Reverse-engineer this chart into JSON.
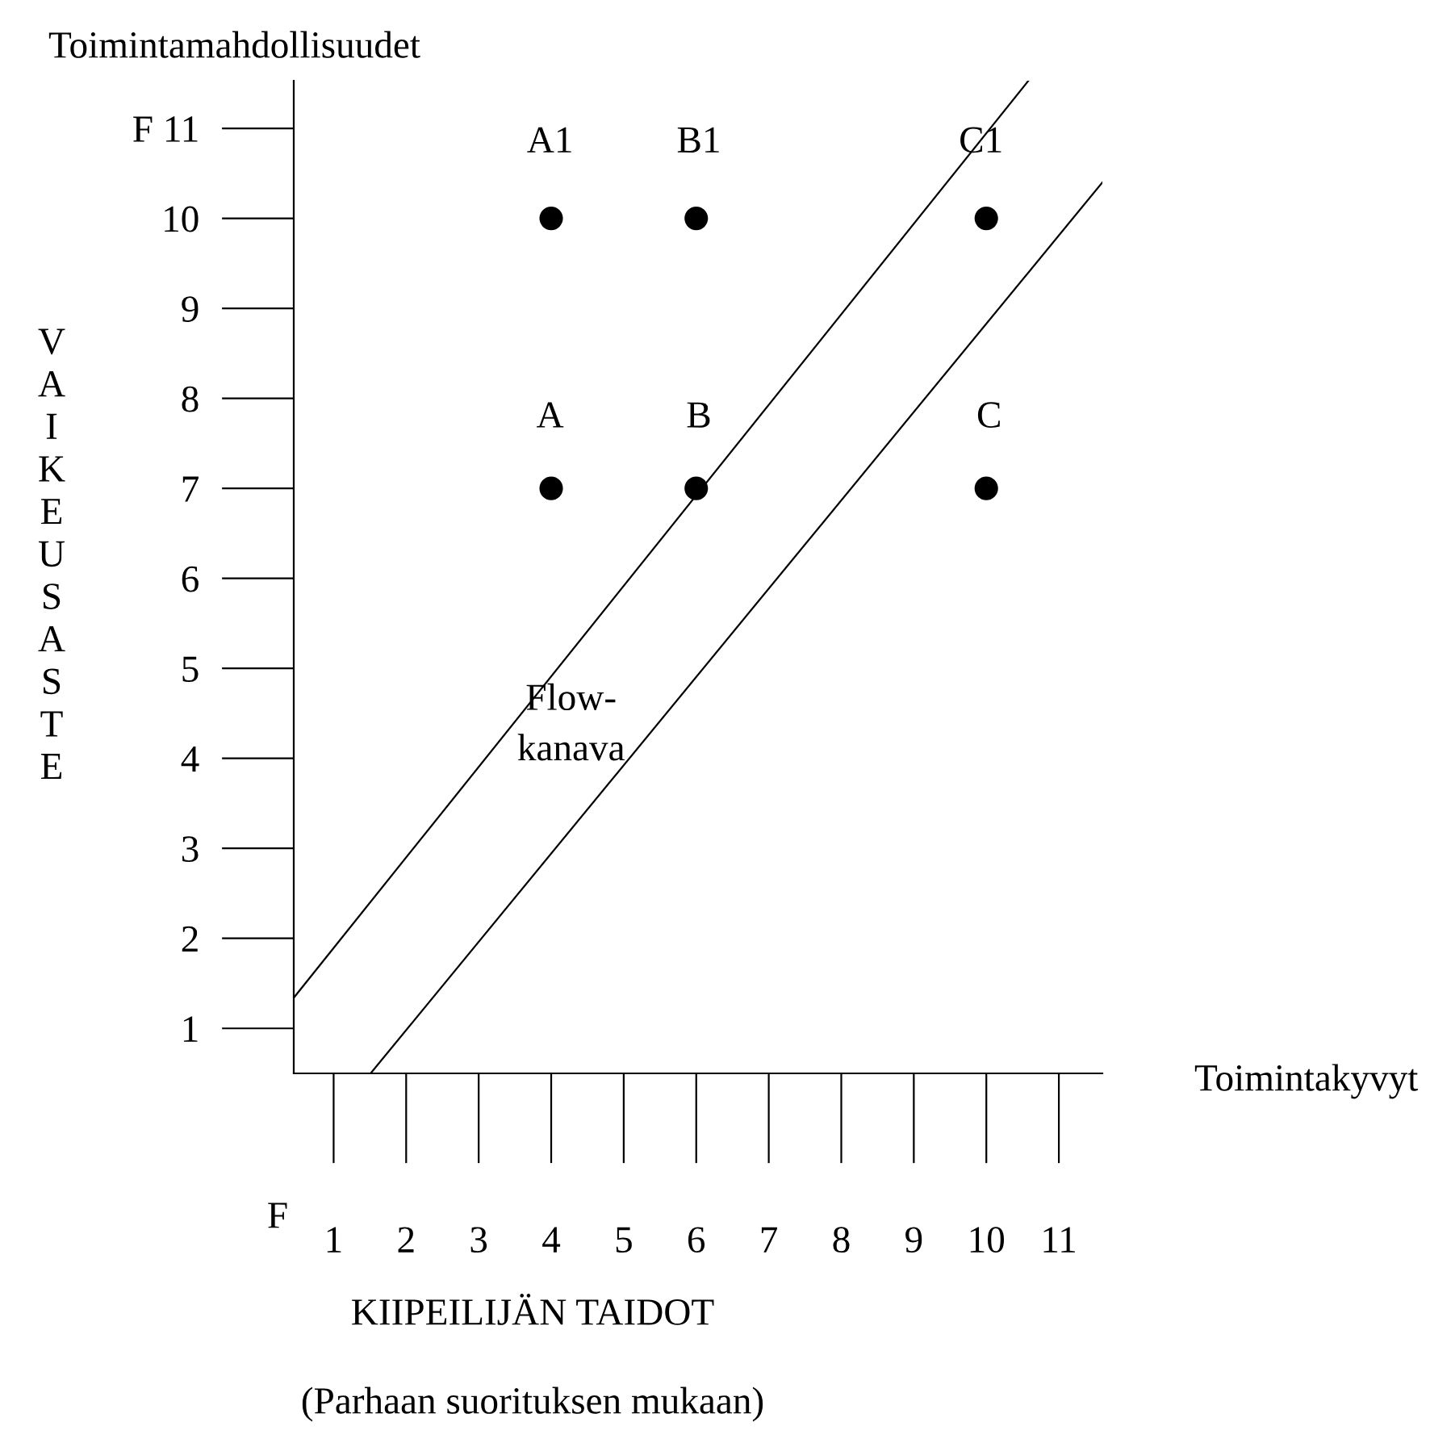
{
  "chart_data": {
    "type": "scatter",
    "title": "Toimintamahdollisuudet",
    "xlabel": "KIIPEILIJÄN TAIDOT",
    "ylabel": "VAIKEUSASTE",
    "series": [
      {
        "color": "#000000",
        "marker": "circle",
        "x": [
          4,
          6,
          10,
          4,
          6,
          10
        ],
        "values": [
          7,
          7,
          7,
          10,
          10,
          10
        ]
      },
      {
        "type": "line",
        "marker": "none",
        "color": "#000000",
        "x": [
          0.45,
          10.58
        ],
        "values": [
          1.34,
          11.53
        ]
      },
      {
        "type": "line",
        "marker": "none",
        "color": "#000000",
        "x": [
          1.51,
          11.6
        ],
        "values": [
          0.5,
          10.4
        ]
      }
    ],
    "xlim": [
      0.45,
      11.6
    ],
    "ylim": [
      0.5,
      11.53
    ],
    "xticks": [
      1,
      2,
      3,
      4,
      5,
      6,
      7,
      8,
      9,
      10,
      11
    ],
    "yticks": [
      1,
      2,
      3,
      4,
      5,
      6,
      7,
      8,
      9,
      10,
      {
        "value": 11,
        "label": "F 11"
      }
    ],
    "grid": false,
    "legend": false,
    "annotations": [
      "A",
      "B",
      "C",
      "A1",
      "B1",
      "C1",
      "Flow-\nkanava",
      "Toimintakyvyt",
      "F",
      "(Parhaan suorituksen mukaan)"
    ]
  }
}
